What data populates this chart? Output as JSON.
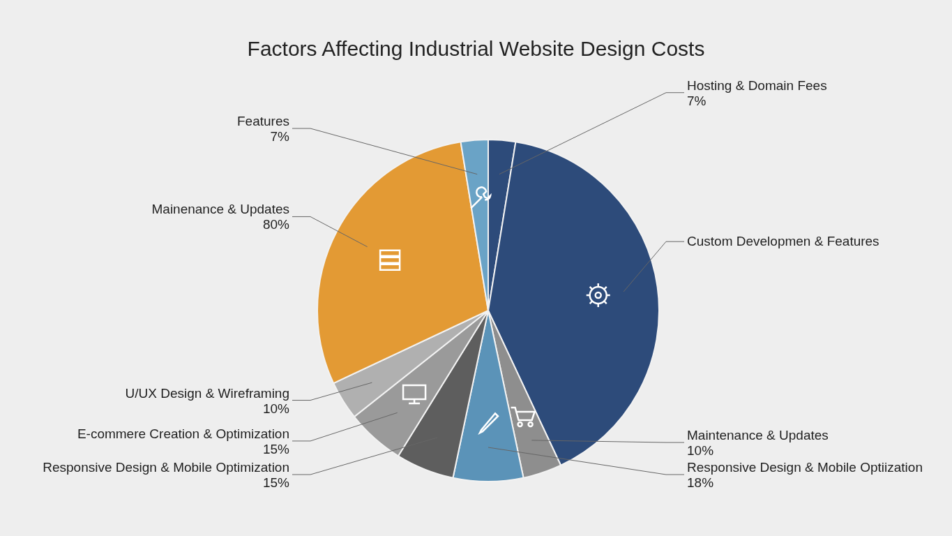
{
  "chart_data": {
    "type": "pie",
    "title": "Factors Affecting Industrial Website Design Costs",
    "categories": [
      "Hosting & Domain Fees",
      "Custom Developmen & Features",
      "Maintenance & Updates",
      "Responsive Design & Mobile Optiization",
      "Responsive Design & Mobile Optimization",
      "E-commere Creation & Optimization",
      "U/UX Design & Wireframing",
      "Mainenance & Updates",
      "Features"
    ],
    "values": [
      7,
      110,
      10,
      18,
      15,
      15,
      10,
      80,
      7
    ],
    "value_labels": [
      "7%",
      null,
      "10%",
      "18%",
      "15%",
      "15%",
      "10%",
      "80%",
      "7%"
    ],
    "colors": [
      "#2d4b7a",
      "#2d4b7a",
      "#8e8e8e",
      "#5b93b8",
      "#5e5e5e",
      "#9a9a9a",
      "#b0b0b0",
      "#e39a34",
      "#6aa3c6"
    ]
  }
}
